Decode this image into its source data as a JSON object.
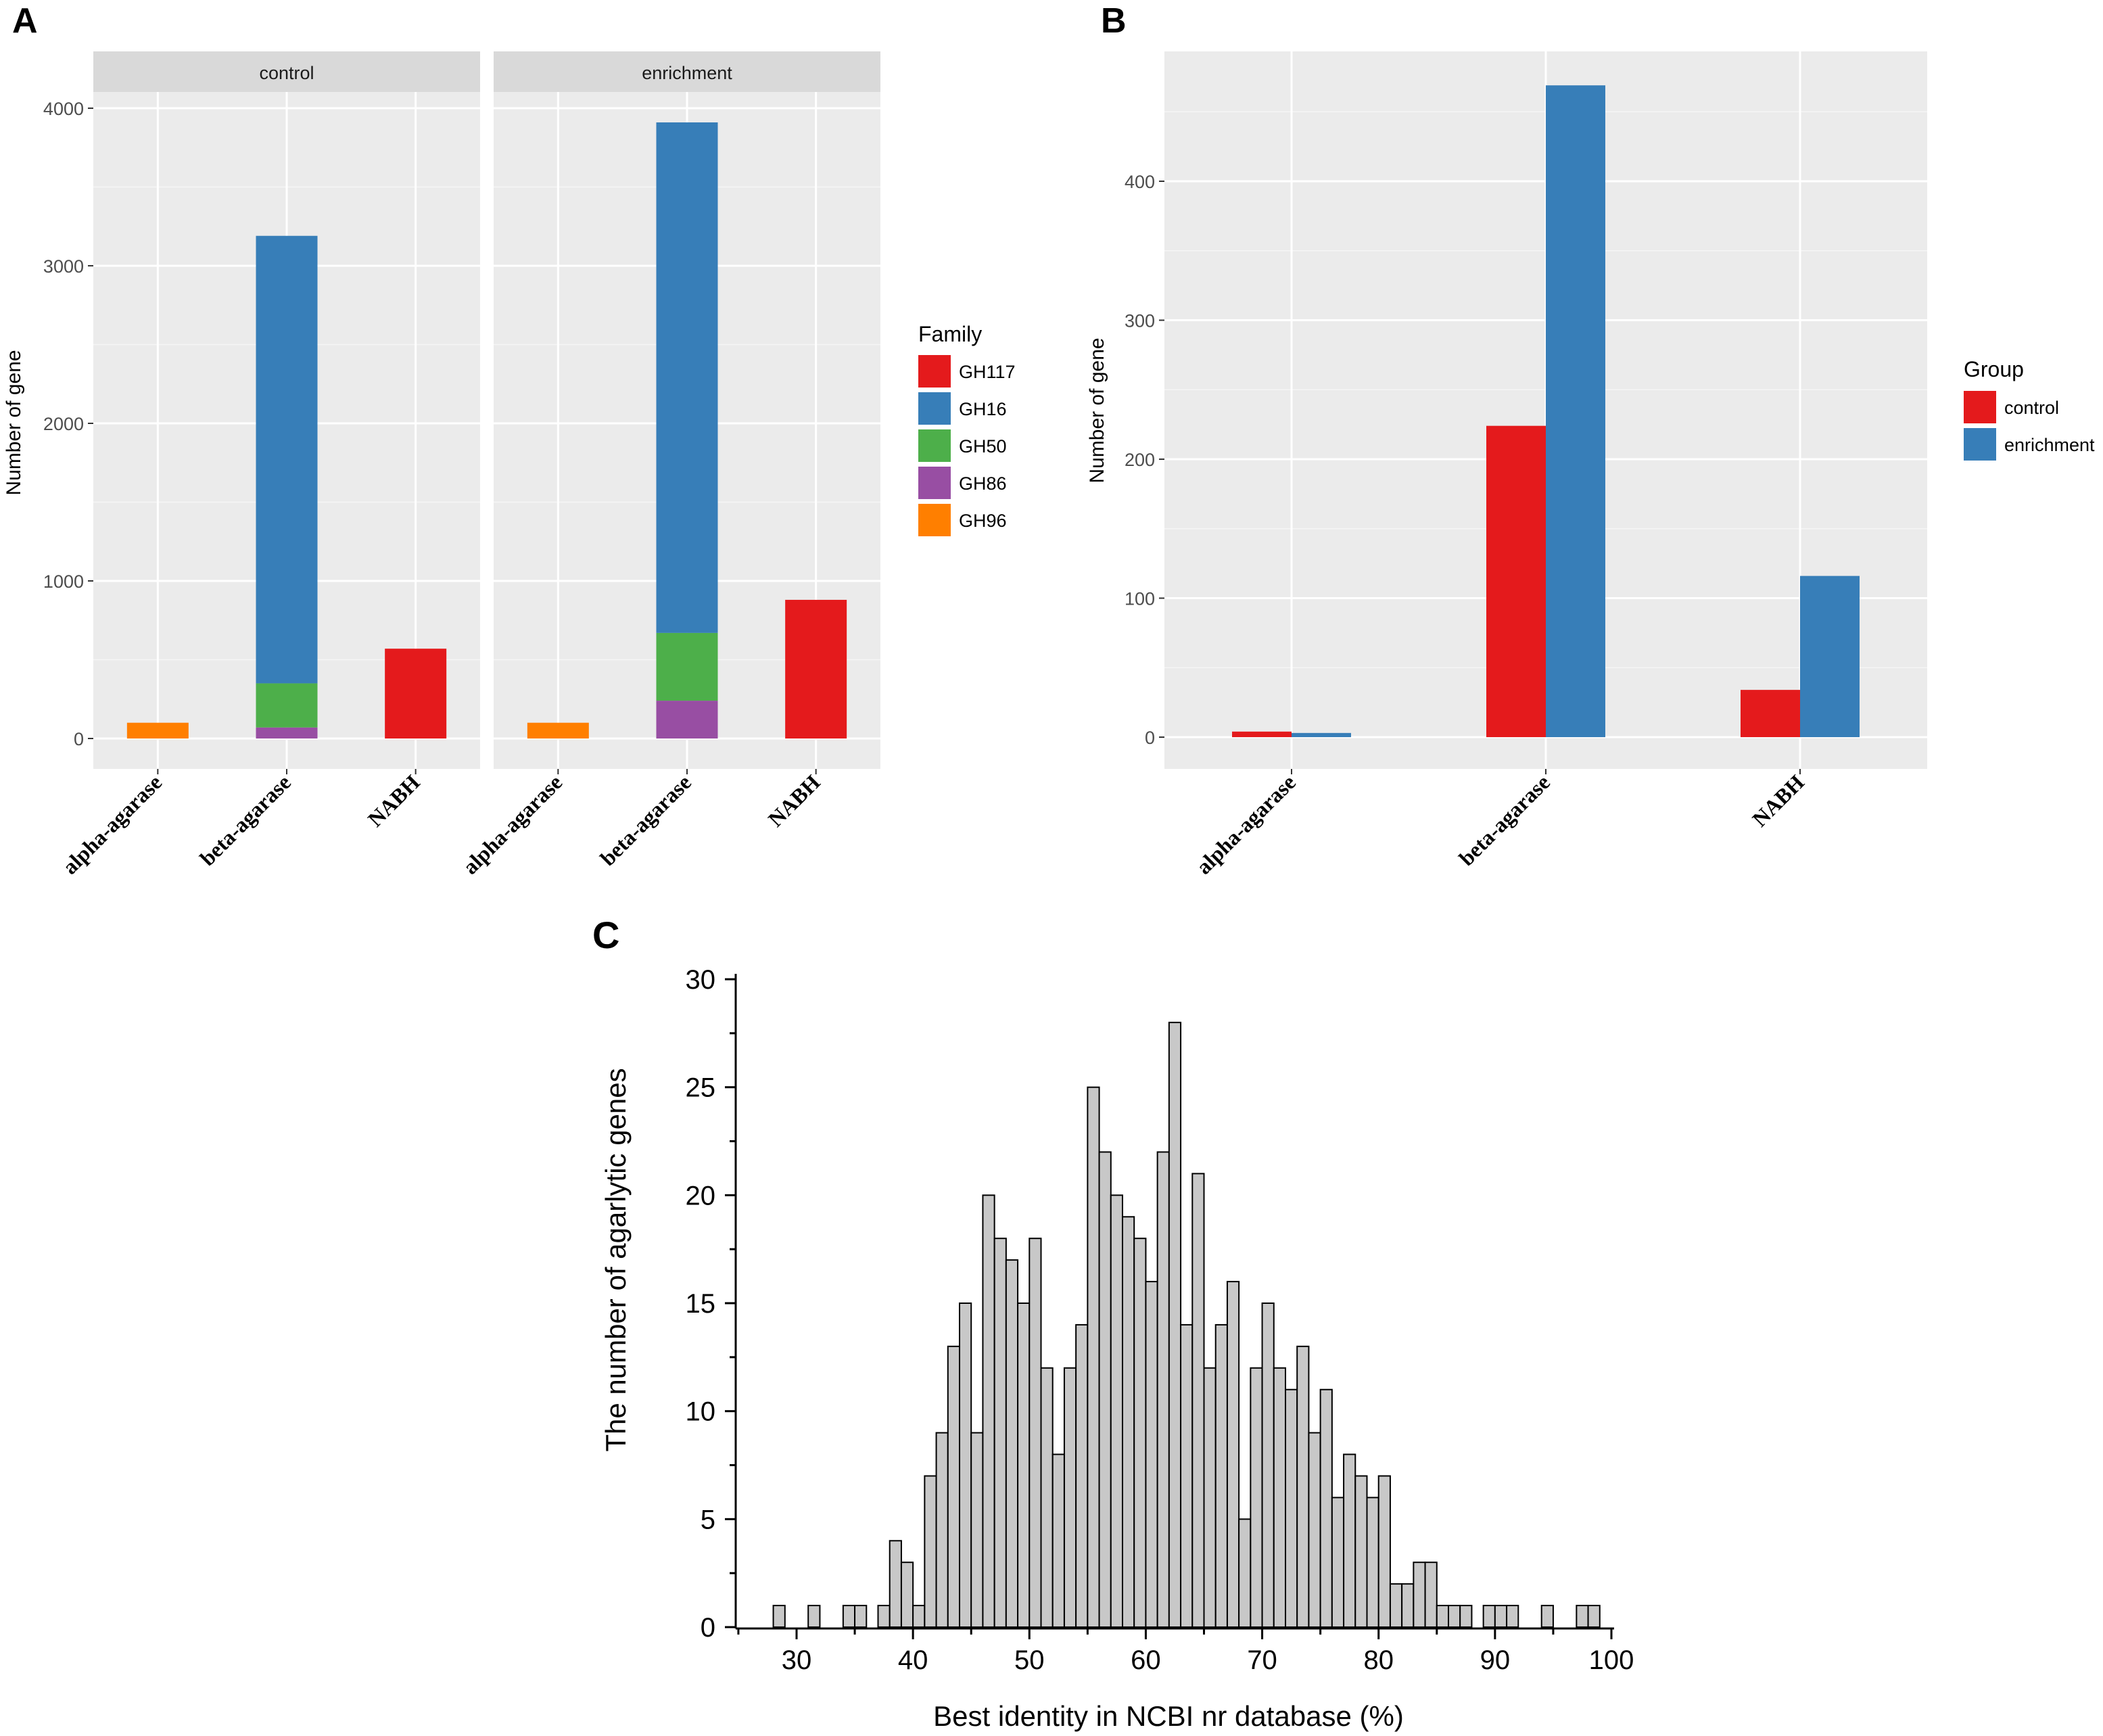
{
  "colors": {
    "GH117": "#E41A1C",
    "GH16": "#377EB8",
    "GH50": "#4DAF4A",
    "GH86": "#984EA3",
    "GH96": "#FF7F00",
    "control": "#E41A1C",
    "enrichment": "#377EB8",
    "panel_bg": "#EBEBEB",
    "strip_bg": "#D9D9D9",
    "hist_fill": "#C8C8C8"
  },
  "chart_data": [
    {
      "panel_label": "A",
      "type": "bar",
      "stacked": true,
      "ylabel": "Number of gene",
      "ylim": [
        0,
        4200
      ],
      "yticks": [
        "0",
        "1000",
        "2000",
        "3000",
        "4000"
      ],
      "ytick_values": [
        0,
        1000,
        2000,
        3000,
        4000
      ],
      "categories": [
        "alpha-agarase",
        "beta-agarase",
        "NABH"
      ],
      "legend": {
        "title": "Family",
        "entries": [
          "GH117",
          "GH16",
          "GH50",
          "GH86",
          "GH96"
        ]
      },
      "facets": [
        {
          "name": "control",
          "bars": [
            {
              "category": "alpha-agarase",
              "segments": [
                {
                  "family": "GH96",
                  "value": 100
                }
              ]
            },
            {
              "category": "beta-agarase",
              "segments": [
                {
                  "family": "GH86",
                  "value": 70
                },
                {
                  "family": "GH50",
                  "value": 280
                },
                {
                  "family": "GH16",
                  "value": 2840
                }
              ]
            },
            {
              "category": "NABH",
              "segments": [
                {
                  "family": "GH117",
                  "value": 570
                }
              ]
            }
          ]
        },
        {
          "name": "enrichment",
          "bars": [
            {
              "category": "alpha-agarase",
              "segments": [
                {
                  "family": "GH96",
                  "value": 100
                }
              ]
            },
            {
              "category": "beta-agarase",
              "segments": [
                {
                  "family": "GH86",
                  "value": 240
                },
                {
                  "family": "GH50",
                  "value": 430
                },
                {
                  "family": "GH16",
                  "value": 3240
                }
              ]
            },
            {
              "category": "NABH",
              "segments": [
                {
                  "family": "GH117",
                  "value": 880
                }
              ]
            }
          ]
        }
      ]
    },
    {
      "panel_label": "B",
      "type": "bar",
      "grouped": true,
      "ylabel": "Number of gene",
      "ylim": [
        -23,
        480
      ],
      "yticks": [
        "0",
        "100",
        "200",
        "300",
        "400"
      ],
      "ytick_values": [
        0,
        100,
        200,
        300,
        400
      ],
      "categories": [
        "alpha-agarase",
        "beta-agarase",
        "NABH"
      ],
      "legend": {
        "title": "Group",
        "entries": [
          "control",
          "enrichment"
        ]
      },
      "series": [
        {
          "name": "control",
          "values": [
            4,
            224,
            34
          ]
        },
        {
          "name": "enrichment",
          "values": [
            3,
            469,
            116
          ]
        }
      ]
    },
    {
      "panel_label": "C",
      "type": "bar",
      "histogram": true,
      "xlabel": "Best identity in NCBI nr database (%)",
      "ylabel": "The number of agarlytic genes",
      "xlim": [
        25,
        100
      ],
      "ylim": [
        0,
        30
      ],
      "xticks": [
        "30",
        "40",
        "50",
        "60",
        "70",
        "80",
        "90",
        "100"
      ],
      "xtick_values": [
        30,
        40,
        50,
        60,
        70,
        80,
        90,
        100
      ],
      "yticks": [
        "0",
        "5",
        "10",
        "15",
        "20",
        "25",
        "30"
      ],
      "ytick_values": [
        0,
        5,
        10,
        15,
        20,
        25,
        30
      ],
      "bin_width": 1,
      "bin_start": 25,
      "counts": [
        0,
        0,
        0,
        1,
        0,
        0,
        1,
        0,
        0,
        1,
        1,
        0,
        1,
        4,
        3,
        1,
        7,
        9,
        13,
        15,
        9,
        20,
        18,
        17,
        15,
        18,
        12,
        8,
        12,
        14,
        25,
        22,
        20,
        19,
        18,
        16,
        22,
        28,
        14,
        21,
        12,
        14,
        16,
        5,
        12,
        15,
        12,
        11,
        13,
        9,
        11,
        6,
        8,
        7,
        6,
        7,
        2,
        2,
        3,
        3,
        1,
        1,
        1,
        0,
        1,
        1,
        1,
        0,
        0,
        1,
        0,
        0,
        1,
        1,
        0
      ]
    }
  ]
}
